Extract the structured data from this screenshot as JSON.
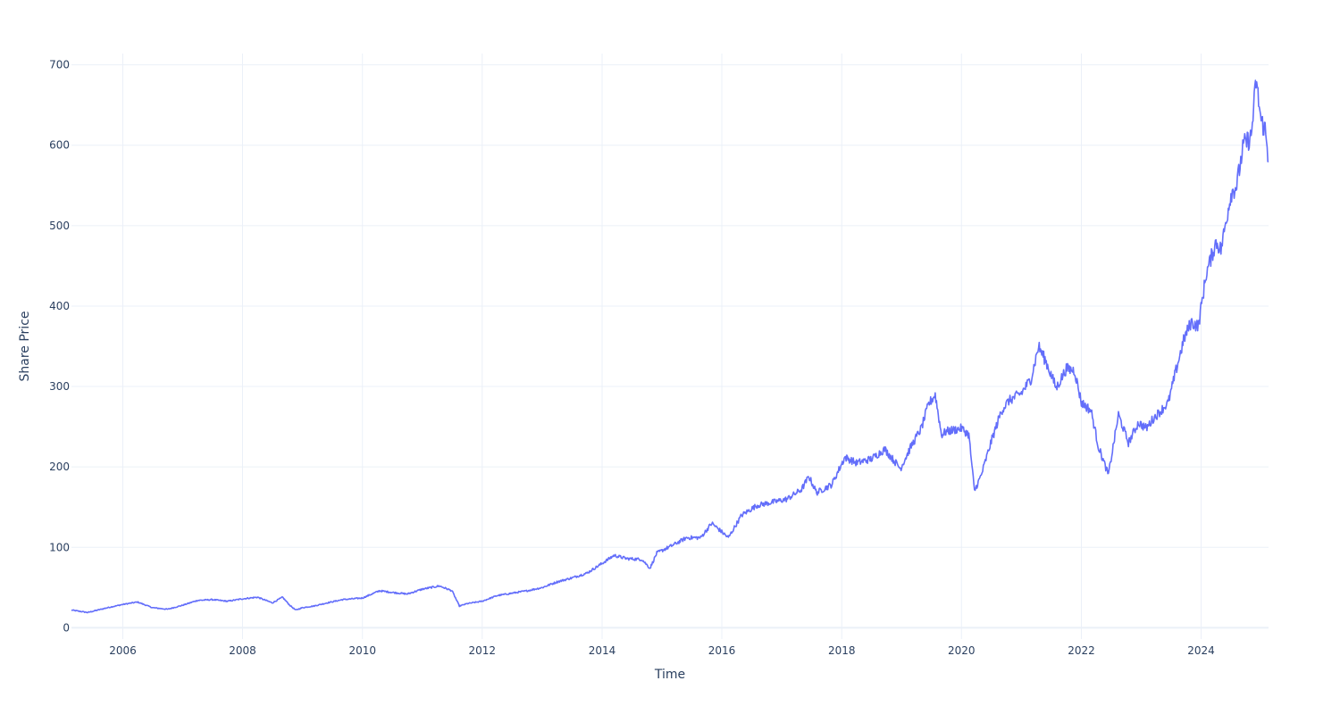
{
  "chart_data": {
    "type": "line",
    "title": "",
    "xlabel": "Time",
    "ylabel": "Share Price",
    "xlim": [
      "2005-02-22",
      "2025-02-15"
    ],
    "ylim": [
      -14,
      714
    ],
    "x_ticks": [
      "2006",
      "2008",
      "2010",
      "2012",
      "2014",
      "2016",
      "2018",
      "2020",
      "2022",
      "2024"
    ],
    "y_ticks": [
      0,
      100,
      200,
      300,
      400,
      500,
      600,
      700
    ],
    "grid": true,
    "legend": "none",
    "series": [
      {
        "color": "#636efa",
        "x": [
          "2005-02-22",
          "2005-06-01",
          "2005-10-01",
          "2006-01-01",
          "2006-04-01",
          "2006-07-01",
          "2006-10-01",
          "2007-01-01",
          "2007-04-01",
          "2007-07-01",
          "2007-10-01",
          "2008-01-01",
          "2008-04-01",
          "2008-07-01",
          "2008-09-01",
          "2008-10-15",
          "2008-11-20",
          "2009-01-01",
          "2009-03-10",
          "2009-06-01",
          "2009-09-01",
          "2010-01-01",
          "2010-04-15",
          "2010-07-01",
          "2010-10-01",
          "2011-01-01",
          "2011-04-15",
          "2011-07-01",
          "2011-08-15",
          "2011-10-01",
          "2012-01-01",
          "2012-04-01",
          "2012-07-01",
          "2012-10-01",
          "2013-01-01",
          "2013-04-01",
          "2013-07-01",
          "2013-10-01",
          "2014-01-01",
          "2014-03-15",
          "2014-06-01",
          "2014-09-01",
          "2014-10-20",
          "2014-12-01",
          "2015-03-01",
          "2015-06-01",
          "2015-08-25",
          "2015-11-01",
          "2016-02-10",
          "2016-05-01",
          "2016-08-01",
          "2016-11-01",
          "2017-02-01",
          "2017-05-01",
          "2017-06-15",
          "2017-08-01",
          "2017-11-01",
          "2018-01-20",
          "2018-04-01",
          "2018-07-01",
          "2018-09-20",
          "2018-12-25",
          "2019-03-01",
          "2019-05-01",
          "2019-06-15",
          "2019-07-25",
          "2019-09-01",
          "2019-10-01",
          "2020-01-01",
          "2020-02-15",
          "2020-03-20",
          "2020-05-01",
          "2020-07-01",
          "2020-09-01",
          "2020-10-15",
          "2021-01-01",
          "2021-03-01",
          "2021-04-15",
          "2021-06-01",
          "2021-08-01",
          "2021-10-01",
          "2021-11-20",
          "2022-01-01",
          "2022-03-01",
          "2022-04-15",
          "2022-06-15",
          "2022-08-15",
          "2022-10-15",
          "2022-12-15",
          "2023-02-01",
          "2023-03-15",
          "2023-05-01",
          "2023-06-15",
          "2023-08-01",
          "2023-09-20",
          "2023-11-01",
          "2023-12-15",
          "2024-02-01",
          "2024-04-01",
          "2024-05-01",
          "2024-07-01",
          "2024-08-05",
          "2024-09-15",
          "2024-11-01",
          "2024-12-01",
          "2025-01-01",
          "2025-01-25",
          "2025-02-15"
        ],
        "y": [
          22,
          19,
          25,
          29,
          32,
          25,
          23,
          28,
          34,
          35,
          33,
          36,
          38,
          31,
          38,
          28,
          22,
          25,
          27,
          31,
          35,
          37,
          46,
          44,
          42,
          48,
          52,
          46,
          27,
          30,
          33,
          40,
          43,
          46,
          50,
          57,
          62,
          68,
          80,
          90,
          86,
          85,
          74,
          93,
          102,
          112,
          112,
          130,
          112,
          140,
          152,
          156,
          160,
          172,
          188,
          168,
          178,
          212,
          205,
          210,
          222,
          198,
          226,
          248,
          278,
          290,
          240,
          244,
          248,
          240,
          170,
          190,
          232,
          270,
          282,
          292,
          310,
          350,
          330,
          298,
          322,
          320,
          280,
          270,
          225,
          190,
          265,
          230,
          255,
          248,
          260,
          270,
          280,
          320,
          360,
          380,
          375,
          440,
          480,
          470,
          540,
          550,
          600,
          610,
          680,
          630,
          620,
          580
        ]
      }
    ]
  }
}
